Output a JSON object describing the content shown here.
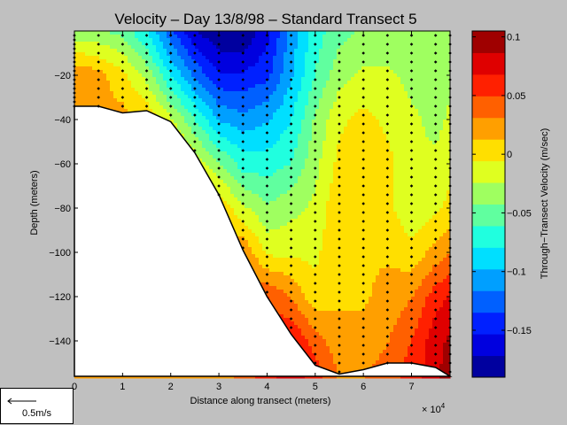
{
  "chart_data": {
    "type": "heatmap",
    "subtype": "filled-contour section",
    "title": "Velocity – Day 13/8/98 – Standard Transect 5",
    "xlabel": "Distance along transect (meters)",
    "x_exponent_label": "× 10",
    "x_exponent": "4",
    "ylabel": "Depth (meters)",
    "xlim": [
      0,
      78000
    ],
    "ylim": [
      -156,
      0
    ],
    "x_ticks": [
      0,
      10000,
      20000,
      30000,
      40000,
      50000,
      60000,
      70000
    ],
    "x_tick_labels": [
      "0",
      "1",
      "2",
      "3",
      "4",
      "5",
      "6",
      "7"
    ],
    "y_ticks": [
      -20,
      -40,
      -60,
      -80,
      -100,
      -120,
      -140
    ],
    "y_tick_labels": [
      "−20",
      "−40",
      "−60",
      "−80",
      "−100",
      "−120",
      "−140"
    ],
    "colorbar": {
      "label": "Through−Transect Velocity (m/sec)",
      "range": [
        -0.19,
        0.105
      ],
      "tick_values": [
        0.1,
        0.05,
        0,
        -0.05,
        -0.1,
        -0.15
      ],
      "tick_labels": [
        "0.1",
        "0.05",
        "0",
        "−0.05",
        "−0.1",
        "−0.15"
      ],
      "levels": 16,
      "colormap": "jet"
    },
    "bottom_profile": {
      "x": [
        0,
        5000,
        10000,
        15000,
        20000,
        25000,
        30000,
        35000,
        40000,
        45000,
        50000,
        55000,
        60000,
        65000,
        70000,
        75000,
        78000
      ],
      "depth": [
        -34,
        -34,
        -37,
        -36,
        -41,
        -55,
        -74,
        -99,
        -120,
        -137,
        -151,
        -155,
        -153,
        -150,
        -150,
        -152,
        -156
      ]
    },
    "station_x": [
      0,
      5000,
      10000,
      15000,
      20000,
      25000,
      30000,
      35000,
      40000,
      45000,
      50000,
      55000,
      60000,
      65000,
      70000,
      75000,
      78000
    ],
    "velocity_field": {
      "x": [
        0,
        5000,
        10000,
        15000,
        20000,
        25000,
        30000,
        35000,
        40000,
        45000,
        50000,
        55000,
        60000,
        65000,
        70000,
        75000,
        78000
      ],
      "depth": [
        0,
        -20,
        -40,
        -60,
        -80,
        -100,
        -120,
        -140,
        -156
      ],
      "values": [
        [
          -0.04,
          -0.04,
          -0.05,
          -0.08,
          -0.13,
          -0.17,
          -0.19,
          -0.19,
          -0.16,
          -0.11,
          -0.07,
          -0.05,
          -0.04,
          -0.04,
          -0.04,
          -0.04,
          -0.03
        ],
        [
          0.03,
          0.02,
          0.0,
          -0.03,
          -0.08,
          -0.12,
          -0.15,
          -0.15,
          -0.14,
          -0.1,
          -0.06,
          -0.03,
          -0.02,
          -0.02,
          -0.03,
          -0.04,
          -0.03
        ],
        [
          0.02,
          0.02,
          0.02,
          0.01,
          -0.02,
          -0.06,
          -0.1,
          -0.11,
          -0.1,
          -0.08,
          -0.04,
          -0.01,
          0.0,
          -0.01,
          -0.02,
          -0.03,
          -0.02
        ],
        [
          0.02,
          0.02,
          0.02,
          0.02,
          0.02,
          -0.01,
          -0.04,
          -0.07,
          -0.07,
          -0.06,
          -0.03,
          0.0,
          0.01,
          0.0,
          -0.02,
          -0.02,
          -0.01
        ],
        [
          0.02,
          0.02,
          0.02,
          0.02,
          0.02,
          0.02,
          0.01,
          -0.02,
          -0.04,
          -0.03,
          -0.02,
          0.01,
          0.01,
          0.0,
          -0.02,
          -0.01,
          0.0
        ],
        [
          0.02,
          0.02,
          0.02,
          0.02,
          0.02,
          0.02,
          0.02,
          0.03,
          -0.01,
          -0.01,
          -0.01,
          0.01,
          0.01,
          0.01,
          0.0,
          0.02,
          0.03
        ],
        [
          0.02,
          0.02,
          0.02,
          0.02,
          0.02,
          0.02,
          0.02,
          0.04,
          0.05,
          0.03,
          0.0,
          0.01,
          0.01,
          0.02,
          0.03,
          0.06,
          0.07
        ],
        [
          0.02,
          0.02,
          0.02,
          0.02,
          0.02,
          0.02,
          0.02,
          0.04,
          0.06,
          0.07,
          0.04,
          0.02,
          0.02,
          0.03,
          0.05,
          0.08,
          0.09
        ],
        [
          0.02,
          0.02,
          0.02,
          0.02,
          0.02,
          0.02,
          0.02,
          0.04,
          0.06,
          0.08,
          0.06,
          0.03,
          0.03,
          0.04,
          0.06,
          0.08,
          0.1
        ]
      ]
    },
    "annotation": {
      "arrow_label": "0.5m/s"
    },
    "grid": false
  }
}
